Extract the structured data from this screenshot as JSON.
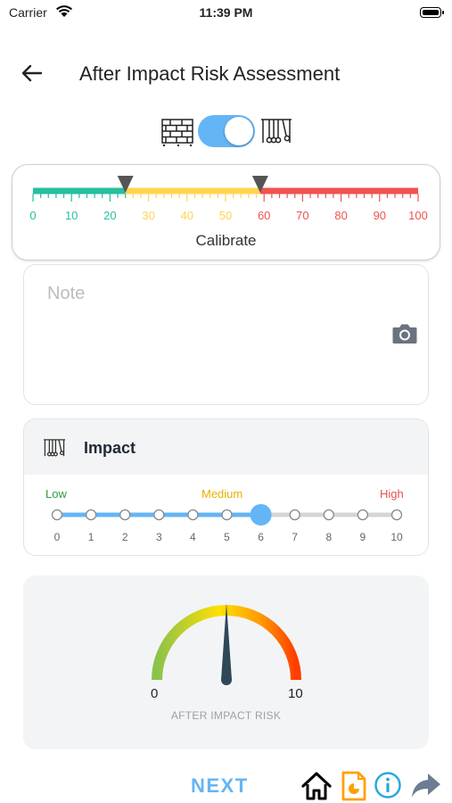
{
  "status_bar": {
    "carrier": "Carrier",
    "time": "11:39 PM"
  },
  "header": {
    "title": "After Impact Risk Assessment"
  },
  "mode_toggle": {
    "left_icon": "brick-wall-icon",
    "right_icon": "newtons-cradle-icon",
    "on": true
  },
  "calibration": {
    "ticks": [
      "0",
      "10",
      "20",
      "30",
      "40",
      "50",
      "60",
      "70",
      "80",
      "90",
      "100"
    ],
    "threshold_low": 24,
    "threshold_high": 59,
    "zone_colors": {
      "low": "#26bfa0",
      "medium": "#ffd54f",
      "high": "#ef5350"
    },
    "label": "Calibrate"
  },
  "note": {
    "placeholder": "Note",
    "value": ""
  },
  "impact": {
    "title": "Impact",
    "low_label": "Low",
    "medium_label": "Medium",
    "high_label": "High",
    "ticks": [
      "0",
      "1",
      "2",
      "3",
      "4",
      "5",
      "6",
      "7",
      "8",
      "9",
      "10"
    ],
    "value": 6
  },
  "gauge": {
    "min_label": "0",
    "max_label": "10",
    "caption": "AFTER IMPACT RISK",
    "value": 5
  },
  "footer": {
    "next_label": "NEXT"
  },
  "colors": {
    "accent": "#64b5f6",
    "needle": "#2f4858"
  }
}
